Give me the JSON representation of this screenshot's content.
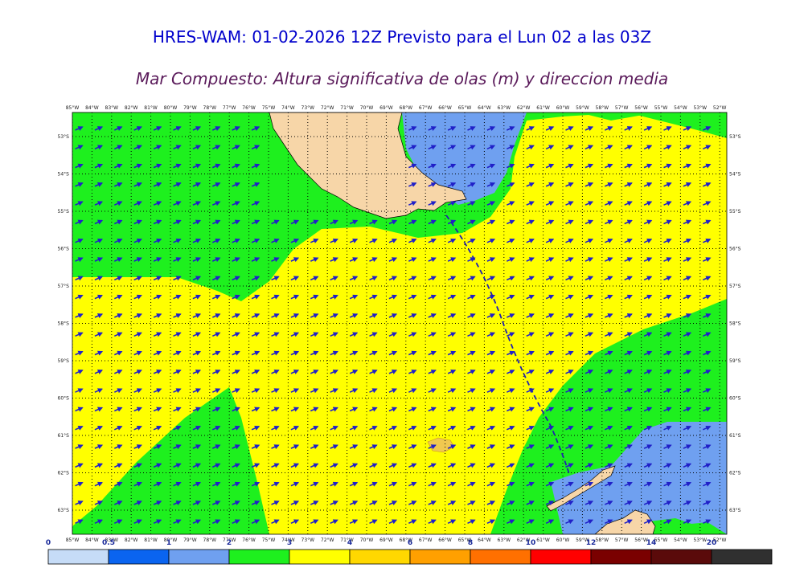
{
  "title": "HRES-WAM: 01-02-2026 12Z Previsto para el Lun 02 a las 03Z",
  "subtitle": "Mar Compuesto: Altura significativa de olas (m) y direccion media",
  "map": {
    "lon_labels": [
      "85°W",
      "84°W",
      "83°W",
      "82°W",
      "81°W",
      "80°W",
      "79°W",
      "78°W",
      "77°W",
      "76°W",
      "75°W",
      "74°W",
      "73°W",
      "72°W",
      "71°W",
      "70°W",
      "69°W",
      "68°W",
      "67°W",
      "66°W",
      "65°W",
      "64°W",
      "63°W",
      "62°W",
      "61°W",
      "60°W",
      "59°W",
      "58°W",
      "57°W",
      "56°W",
      "55°W",
      "54°W",
      "53°W",
      "52°W"
    ],
    "lat_labels": [
      "53°S",
      "54°S",
      "55°S",
      "56°S",
      "57°S",
      "58°S",
      "59°S",
      "60°S",
      "61°S",
      "62°S",
      "63°S"
    ],
    "colors": {
      "ocean_green": "#1ef01e",
      "ocean_yellow": "#ffff00",
      "light_blue": "#6fa0f0",
      "land": "#f7d6a8",
      "arrow": "#2020c8",
      "track": "#2020b0"
    }
  },
  "colorbar": {
    "ticks": [
      "0",
      "0.5",
      "1",
      "2",
      "3",
      "4",
      "6",
      "8",
      "10",
      "12",
      "14",
      "20"
    ],
    "colors": [
      "#c6dcf7",
      "#0a64f0",
      "#6fa0f0",
      "#1ef01e",
      "#ffff00",
      "#ffd800",
      "#ffa000",
      "#ff7000",
      "#ff0000",
      "#7a0000",
      "#5a0a0a",
      "#303030"
    ]
  }
}
